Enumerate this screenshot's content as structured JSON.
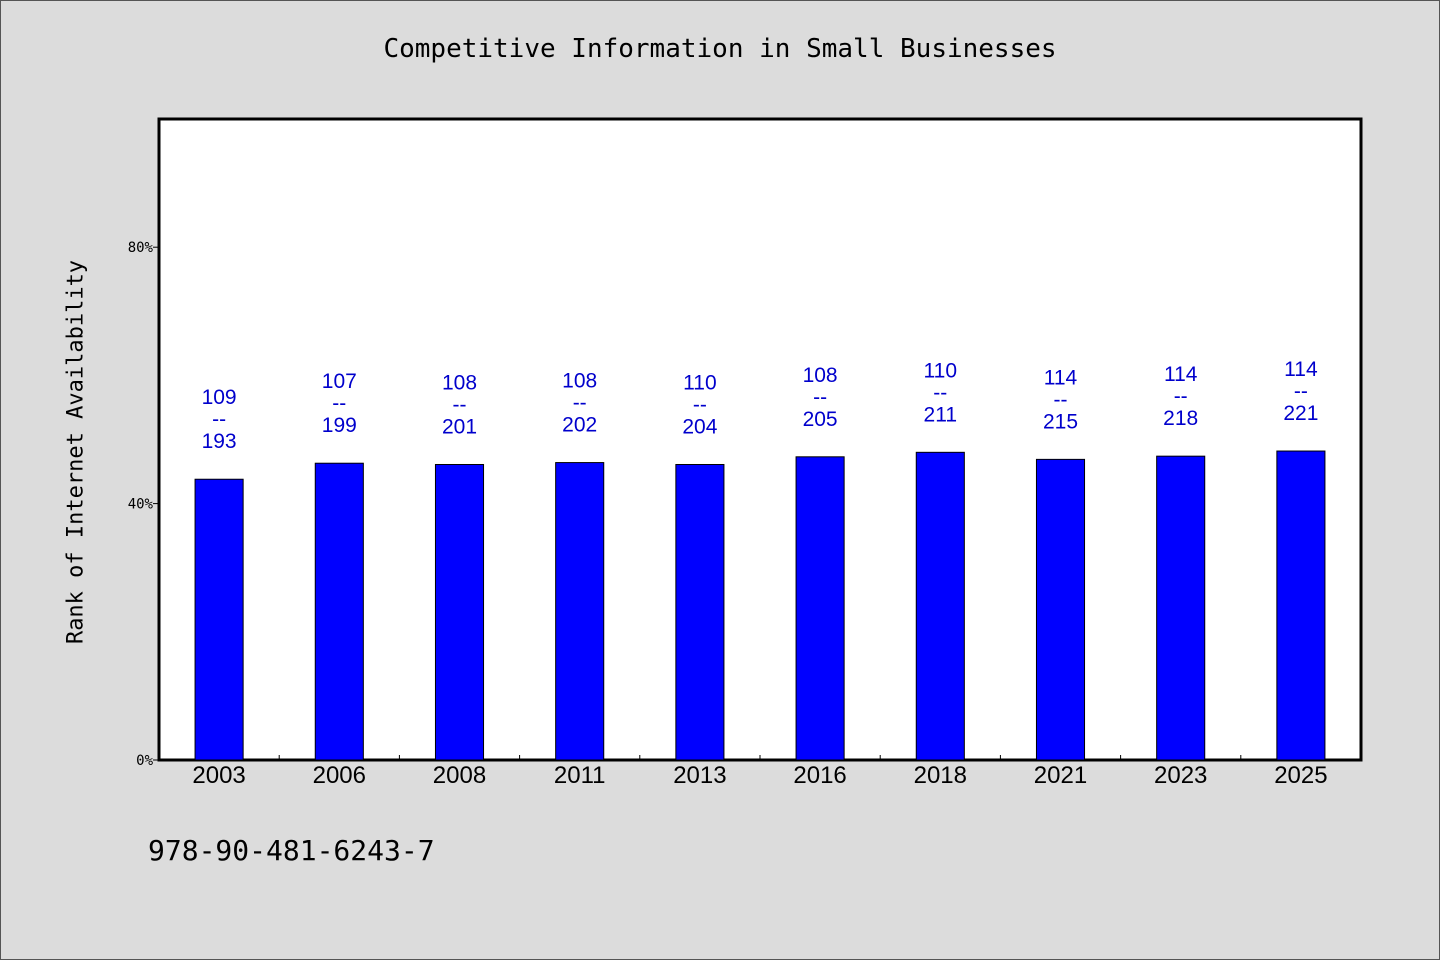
{
  "chart_data": {
    "type": "bar",
    "title": "Competitive Information in Small Businesses",
    "ylabel": "Rank of Internet Availability",
    "xlabel": "",
    "categories": [
      "2003",
      "2006",
      "2008",
      "2011",
      "2013",
      "2016",
      "2018",
      "2021",
      "2023",
      "2025"
    ],
    "values": [
      43.8,
      46.3,
      46.1,
      46.4,
      46.1,
      47.3,
      48.0,
      46.9,
      47.4,
      48.2
    ],
    "numerators": [
      "109",
      "107",
      "108",
      "108",
      "110",
      "108",
      "110",
      "114",
      "114",
      "114"
    ],
    "denominators": [
      "193",
      "199",
      "201",
      "202",
      "204",
      "205",
      "211",
      "215",
      "218",
      "221"
    ],
    "separator": "--",
    "yticks": [
      "0%",
      "40%",
      "80%"
    ],
    "ytick_values": [
      0,
      40,
      80
    ],
    "ylim": [
      0,
      100
    ],
    "grid": false,
    "bar_color": "#0000ff",
    "label_color": "#0000cc"
  },
  "footer_text": "978-90-481-6243-7"
}
